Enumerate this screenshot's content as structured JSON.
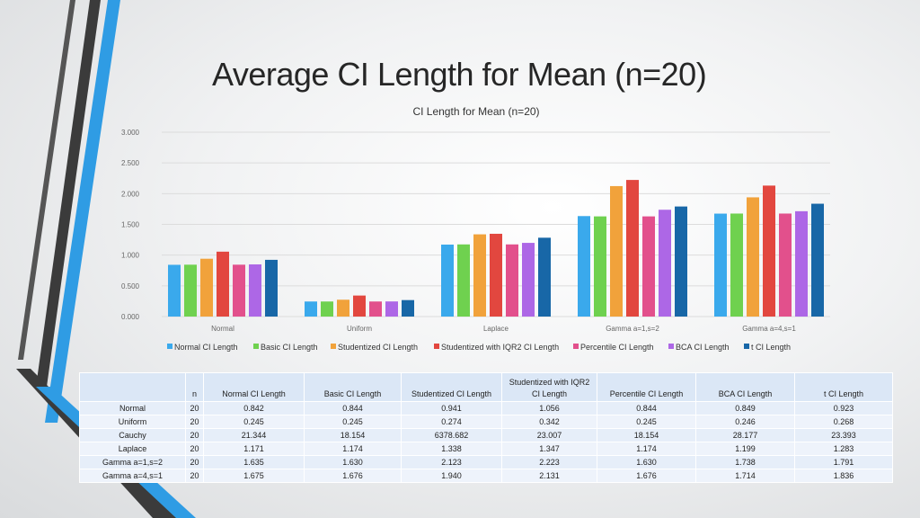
{
  "slide": {
    "title": "Average CI Length for Mean (n=20)"
  },
  "colors": {
    "Normal CI Length": "#3aa9ec",
    "Basic CI Length": "#6fd14f",
    "Studentized CI Length": "#f1a23b",
    "Studentized with IQR2 CI Length": "#e2473f",
    "Percentile CI Length": "#e2508c",
    "BCA CI Length": "#ad67e6",
    "t CI Length": "#1867a7",
    "deco_blue": "#2f9ce4",
    "deco_dark": "#3a3a3a"
  },
  "chart_data": {
    "type": "bar",
    "title": "CI Length for Mean (n=20)",
    "xlabel": "",
    "ylabel": "",
    "ylim": [
      0,
      3
    ],
    "yticks": [
      "0.000",
      "0.500",
      "1.000",
      "1.500",
      "2.000",
      "2.500",
      "3.000"
    ],
    "ytick_values": [
      0,
      0.5,
      1,
      1.5,
      2,
      2.5,
      3
    ],
    "grid": true,
    "legend": "bottom",
    "categories": [
      "Normal",
      "Uniform",
      "Laplace",
      "Gamma a=1,s=2",
      "Gamma a=4,s=1"
    ],
    "series": [
      {
        "name": "Normal CI Length",
        "values": [
          0.842,
          0.245,
          1.171,
          1.635,
          1.675
        ]
      },
      {
        "name": "Basic CI Length",
        "values": [
          0.844,
          0.245,
          1.174,
          1.63,
          1.676
        ]
      },
      {
        "name": "Studentized CI Length",
        "values": [
          0.941,
          0.274,
          1.338,
          2.123,
          1.94
        ]
      },
      {
        "name": "Studentized with IQR2 CI Length",
        "values": [
          1.056,
          0.342,
          1.347,
          2.223,
          2.131
        ]
      },
      {
        "name": "Percentile CI Length",
        "values": [
          0.844,
          0.245,
          1.174,
          1.63,
          1.676
        ]
      },
      {
        "name": "BCA CI Length",
        "values": [
          0.849,
          0.246,
          1.199,
          1.738,
          1.714
        ]
      },
      {
        "name": "t CI Length",
        "values": [
          0.923,
          0.268,
          1.283,
          1.791,
          1.836
        ]
      }
    ]
  },
  "table": {
    "headers": [
      "",
      "n",
      "Normal CI Length",
      "Basic CI Length",
      "Studentized CI Length",
      "Studentized with IQR2 CI Length",
      "Percentile CI Length",
      "BCA CI Length",
      "t CI Length"
    ],
    "rows": [
      [
        "Normal",
        "20",
        "0.842",
        "0.844",
        "0.941",
        "1.056",
        "0.844",
        "0.849",
        "0.923"
      ],
      [
        "Uniform",
        "20",
        "0.245",
        "0.245",
        "0.274",
        "0.342",
        "0.245",
        "0.246",
        "0.268"
      ],
      [
        "Cauchy",
        "20",
        "21.344",
        "18.154",
        "6378.682",
        "23.007",
        "18.154",
        "28.177",
        "23.393"
      ],
      [
        "Laplace",
        "20",
        "1.171",
        "1.174",
        "1.338",
        "1.347",
        "1.174",
        "1.199",
        "1.283"
      ],
      [
        "Gamma a=1,s=2",
        "20",
        "1.635",
        "1.630",
        "2.123",
        "2.223",
        "1.630",
        "1.738",
        "1.791"
      ],
      [
        "Gamma a=4,s=1",
        "20",
        "1.675",
        "1.676",
        "1.940",
        "2.131",
        "1.676",
        "1.714",
        "1.836"
      ]
    ]
  }
}
